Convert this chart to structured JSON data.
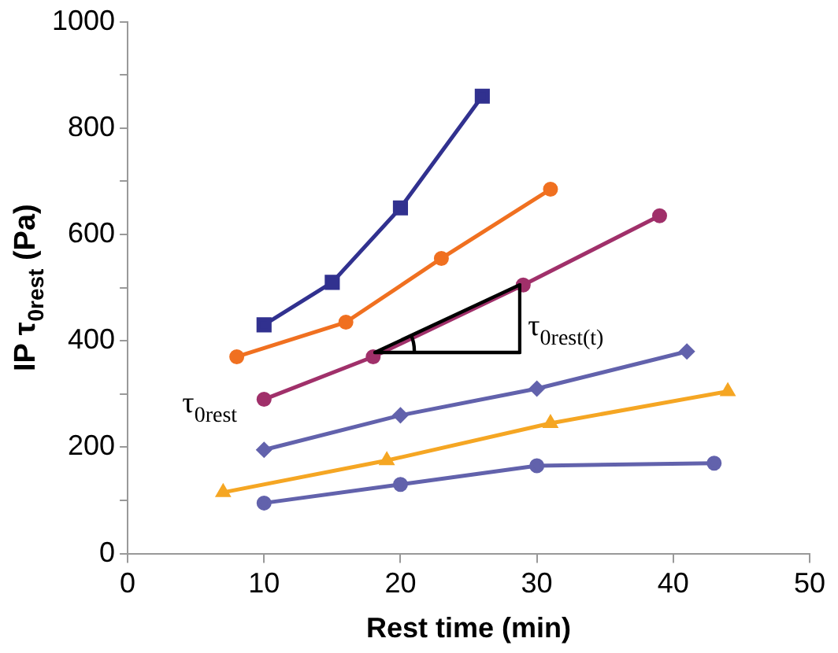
{
  "chart_data": {
    "type": "line",
    "xlabel": "Rest time (min)",
    "ylabel": "IP τ$_{0rest}$ (Pa)",
    "xlim": [
      0,
      50
    ],
    "xticks": [
      0,
      10,
      20,
      30,
      40,
      50
    ],
    "ylim": [
      0,
      1000
    ],
    "yticks": [
      0,
      {
        "value": 100,
        "label": null
      },
      200,
      {
        "value": 300,
        "label": null
      },
      400,
      {
        "value": 500,
        "label": null
      },
      600,
      {
        "value": 700,
        "label": null
      },
      800,
      {
        "value": 900,
        "label": null
      },
      1000
    ],
    "grid": false,
    "legend": false,
    "line_style": "solid",
    "series": [
      {
        "color": "#31318f",
        "marker": "square",
        "x": [
          10,
          15,
          20,
          26
        ],
        "values": [
          430,
          510,
          650,
          860
        ]
      },
      {
        "color": "#f07020",
        "marker": "circle",
        "x": [
          8,
          16,
          23,
          31
        ],
        "values": [
          370,
          435,
          555,
          685
        ]
      },
      {
        "color": "#a0306a",
        "marker": "circle",
        "x": [
          10,
          18,
          29,
          39
        ],
        "values": [
          290,
          370,
          505,
          635
        ]
      },
      {
        "color": "#6262ac",
        "marker": "diamond",
        "x": [
          10,
          20,
          30,
          41
        ],
        "values": [
          195,
          260,
          310,
          380
        ]
      },
      {
        "color": "#f5a623",
        "marker": "triangle",
        "x": [
          7,
          19,
          31,
          44
        ],
        "values": [
          115,
          175,
          245,
          305
        ]
      },
      {
        "color": "#6262ac",
        "marker": "circle",
        "x": [
          10,
          20,
          30,
          43
        ],
        "values": [
          95,
          130,
          165,
          170
        ]
      }
    ],
    "annotations": [
      "τ$_{0rest}$",
      {
        "text": "τ$_{0rest(t)}$",
        "x": 29,
        "y": 505
      }
    ]
  }
}
